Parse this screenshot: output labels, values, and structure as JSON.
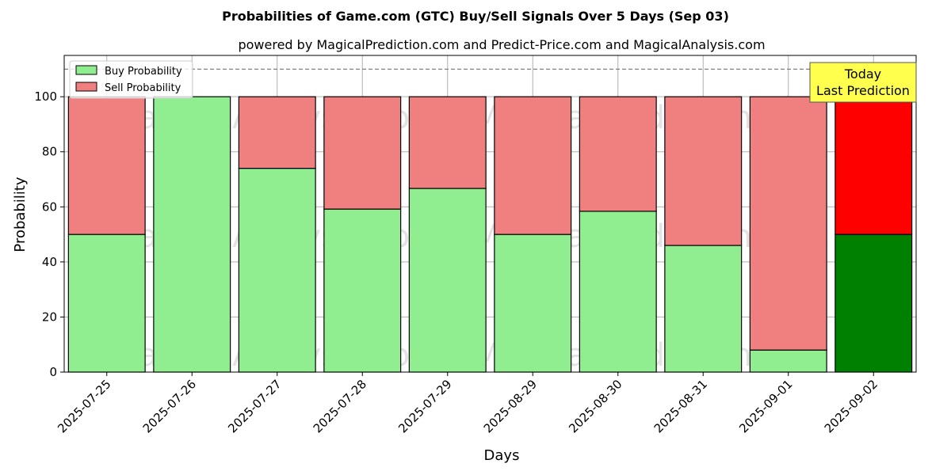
{
  "chart_data": {
    "type": "bar",
    "stacked": true,
    "title": "Probabilities of Game.com (GTC) Buy/Sell Signals Over 5 Days (Sep 03)",
    "subtitle": "powered by MagicalPrediction.com and Predict-Price.com and MagicalAnalysis.com",
    "xlabel": "Days",
    "ylabel": "Probability",
    "ylim": [
      0,
      115
    ],
    "yticks": [
      0,
      20,
      40,
      60,
      80,
      100
    ],
    "grid": true,
    "legend_placement": "top-left",
    "categories": [
      "2025-07-25",
      "2025-07-26",
      "2025-07-27",
      "2025-07-28",
      "2025-07-29",
      "2025-08-29",
      "2025-08-30",
      "2025-08-31",
      "2025-09-01",
      "2025-09-02"
    ],
    "series": [
      {
        "name": "Buy Probability",
        "values": [
          50,
          100,
          74,
          59.2,
          66.7,
          50,
          58.4,
          46,
          8,
          50
        ],
        "color": "#90ee90",
        "highlight_color": "#008000"
      },
      {
        "name": "Sell Probability",
        "values": [
          50,
          0,
          26,
          40.8,
          33.3,
          50,
          41.6,
          54,
          92,
          50
        ],
        "color": "#f08080",
        "highlight_color": "#ff0000"
      }
    ],
    "highlight_index": 9,
    "reference_line": {
      "y": 110,
      "style": "dashed",
      "color": "#808080"
    },
    "annotation": {
      "lines": [
        "Today",
        "Last Prediction"
      ],
      "background": "#ffff4d"
    },
    "watermarks": [
      "MagicalAnalysis.com",
      "MagicalPrediction.com"
    ]
  }
}
